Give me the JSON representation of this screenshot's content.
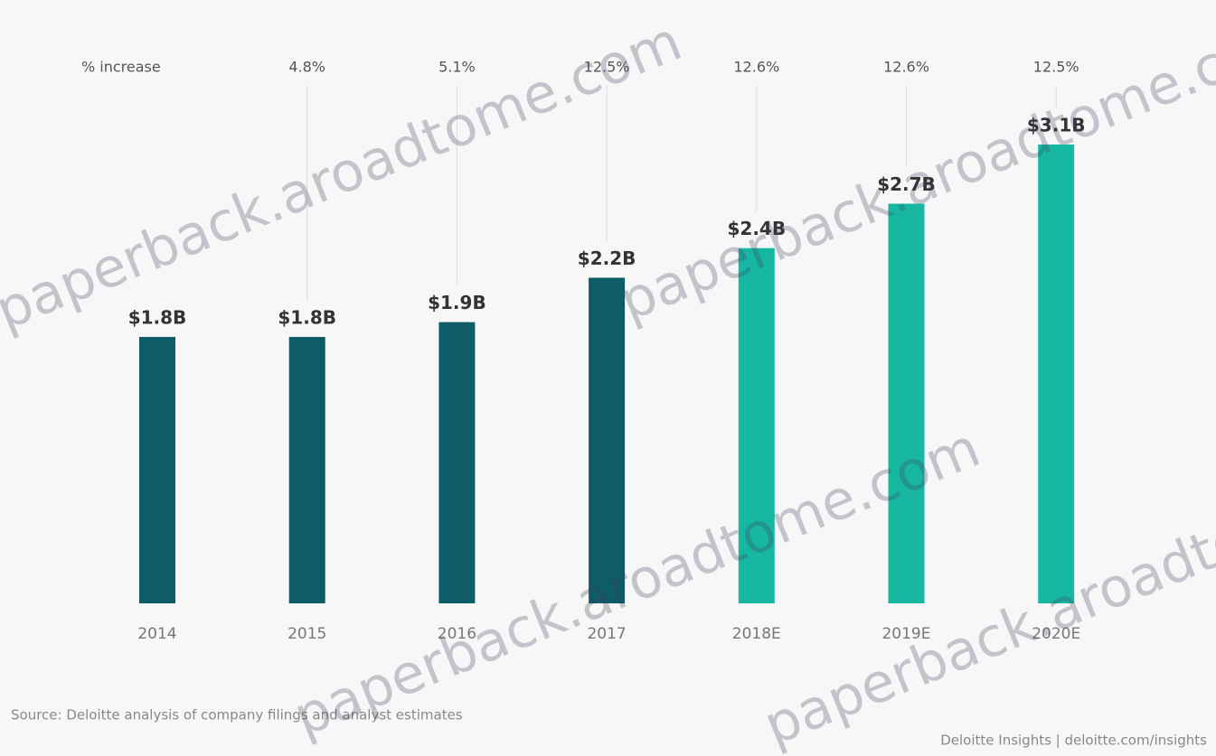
{
  "chart_data": {
    "type": "bar",
    "categories": [
      "2014",
      "2015",
      "2016",
      "2017",
      "2018E",
      "2019E",
      "2020E"
    ],
    "values": [
      1.8,
      1.8,
      1.9,
      2.2,
      2.4,
      2.7,
      3.1
    ],
    "value_labels": [
      "$1.8B",
      "$1.8B",
      "$1.9B",
      "$2.2B",
      "$2.4B",
      "$2.7B",
      "$3.1B"
    ],
    "colors": [
      "#0e5c68",
      "#0e5c68",
      "#0e5c68",
      "#0e5c68",
      "#17b7a2",
      "#17b7a2",
      "#17b7a2"
    ],
    "increase": {
      "label": "% increase",
      "values": [
        null,
        4.8,
        5.1,
        12.5,
        12.6,
        12.6,
        12.5
      ],
      "value_labels": [
        null,
        "4.8%",
        "5.1%",
        "12.5%",
        "12.6%",
        "12.6%",
        "12.5%"
      ]
    },
    "source": "Source: Deloitte analysis of company filings and analyst estimates",
    "credit": "Deloitte Insights | deloitte.com/insights",
    "watermark": "paperback.aroadtome.com"
  }
}
